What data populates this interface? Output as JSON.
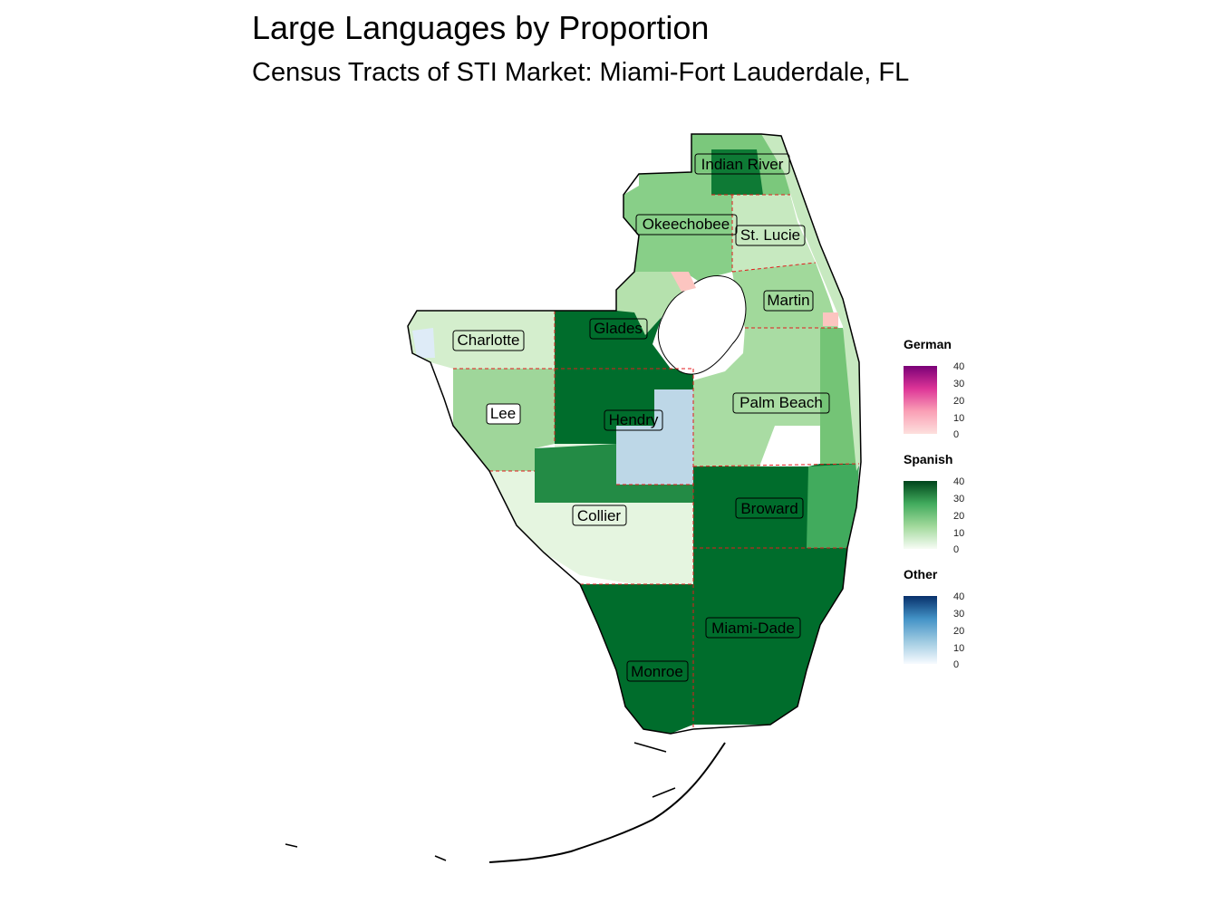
{
  "title": "Large Languages by Proportion",
  "subtitle": "Census Tracts of STI Market: Miami-Fort Lauderdale, FL",
  "counties": [
    {
      "name": "Indian River",
      "fill": "#7bc87c",
      "language": "Spanish"
    },
    {
      "name": "Okeechobee",
      "fill": "#88cf88",
      "language": "Spanish"
    },
    {
      "name": "St. Lucie",
      "fill": "#c7e9c0",
      "language": "Spanish"
    },
    {
      "name": "Martin",
      "fill": "#a1d99b",
      "language": "Spanish"
    },
    {
      "name": "Charlotte",
      "fill": "#d4eecd",
      "language": "Spanish"
    },
    {
      "name": "Glades",
      "fill": "#006d2c",
      "language": "Spanish"
    },
    {
      "name": "Palm Beach",
      "fill": "#a9dca3",
      "language": "Spanish"
    },
    {
      "name": "Lee",
      "fill": "#9fd69a",
      "language": "Spanish"
    },
    {
      "name": "Hendry",
      "fill": "#006d2c",
      "language": "Spanish"
    },
    {
      "name": "Collier",
      "fill": "#e5f5e0",
      "language": "Spanish"
    },
    {
      "name": "Broward",
      "fill": "#006d2c",
      "language": "Spanish"
    },
    {
      "name": "Miami-Dade",
      "fill": "#006d2c",
      "language": "Spanish"
    },
    {
      "name": "Monroe",
      "fill": "#006d2c",
      "language": "Spanish"
    }
  ],
  "legends": [
    {
      "title": "German",
      "ticks": [
        "40",
        "30",
        "20",
        "10",
        "0"
      ],
      "color_low": "#fde0dd",
      "color_high": "#7a0177"
    },
    {
      "title": "Spanish",
      "ticks": [
        "40",
        "30",
        "20",
        "10",
        "0"
      ],
      "color_low": "#f7fcf5",
      "color_high": "#00441b"
    },
    {
      "title": "Other",
      "ticks": [
        "40",
        "30",
        "20",
        "10",
        "0"
      ],
      "color_low": "#f7fbff",
      "color_high": "#08306b"
    }
  ],
  "colors": {
    "boundary": "#000000",
    "county_divider": "#e31a1c",
    "water": "#ffffff",
    "hendry_other": "#bdd7e7",
    "charlotte_other": "#deebf7",
    "german_pink": "#fcc5c0"
  }
}
